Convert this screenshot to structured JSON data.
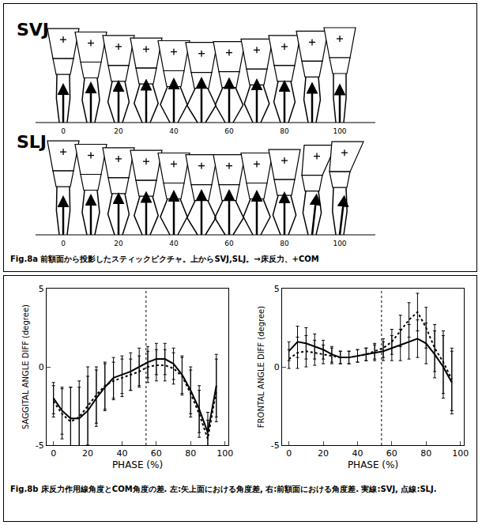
{
  "panel_a": {
    "rows": [
      {
        "label": "SVJ",
        "ticks": [
          0,
          20,
          40,
          60,
          80,
          100
        ]
      },
      {
        "label": "SLJ",
        "ticks": [
          0,
          20,
          40,
          60,
          80,
          100
        ]
      }
    ],
    "caption": "Fig.8a 前額面から投影したスティックピクチャ。上からSVJ,SLJ。→床反力、+COM"
  },
  "chart_data": [
    {
      "type": "line",
      "x_label": "PHASE (%)",
      "y_label": "SAGGITAL ANGLE DIFF (degree)",
      "x": [
        0,
        5,
        10,
        15,
        20,
        25,
        30,
        35,
        40,
        45,
        50,
        55,
        60,
        65,
        70,
        75,
        80,
        85,
        90,
        95
      ],
      "xlim": [
        -4,
        102
      ],
      "xticks": [
        0,
        20,
        40,
        60,
        80,
        100
      ],
      "ylim": [
        -5,
        5
      ],
      "yticks": [
        -5,
        0,
        5
      ],
      "reference_line_x": 54,
      "series": [
        {
          "color": "#000000",
          "line_style": "solid",
          "values": [
            -2.0,
            -2.8,
            -3.3,
            -3.3,
            -2.8,
            -2.0,
            -1.3,
            -0.7,
            -0.5,
            -0.3,
            0.0,
            0.3,
            0.5,
            0.5,
            0.2,
            -0.5,
            -1.5,
            -2.7,
            -4.2,
            -1.2
          ],
          "errors": [
            1.0,
            1.5,
            2.0,
            2.0,
            2.2,
            1.8,
            1.5,
            1.3,
            1.2,
            1.2,
            1.2,
            1.0,
            1.0,
            1.0,
            1.0,
            1.2,
            1.5,
            1.5,
            1.3,
            2.0
          ]
        },
        {
          "color": "#000000",
          "line_style": "dot",
          "values": [
            -2.2,
            -3.0,
            -3.5,
            -3.2,
            -2.5,
            -1.8,
            -1.2,
            -0.9,
            -0.7,
            -0.5,
            -0.3,
            0.0,
            0.1,
            0.1,
            -0.1,
            -0.6,
            -1.7,
            -3.0,
            -4.6,
            -1.5
          ],
          "errors": [
            1.0,
            1.6,
            2.2,
            2.3,
            2.5,
            1.8,
            1.5,
            1.2,
            1.2,
            1.0,
            1.0,
            1.0,
            1.0,
            1.0,
            1.0,
            1.2,
            1.5,
            1.5,
            1.2,
            2.0
          ]
        }
      ]
    },
    {
      "type": "line",
      "x_label": "PHASE (%)",
      "y_label": "FRONTAL ANGLE DIFF (degree)",
      "x": [
        0,
        5,
        10,
        15,
        20,
        25,
        30,
        35,
        40,
        45,
        50,
        55,
        60,
        65,
        70,
        75,
        80,
        85,
        90,
        95
      ],
      "xlim": [
        -4,
        102
      ],
      "xticks": [
        0,
        20,
        40,
        60,
        80,
        100
      ],
      "ylim": [
        -5,
        5
      ],
      "yticks": [
        -5,
        0,
        5
      ],
      "reference_line_x": 54,
      "series": [
        {
          "color": "#000000",
          "line_style": "solid",
          "values": [
            1.0,
            1.6,
            1.5,
            1.3,
            1.1,
            0.8,
            0.6,
            0.6,
            0.7,
            0.8,
            0.9,
            1.0,
            1.2,
            1.4,
            1.6,
            1.8,
            1.5,
            0.8,
            0.0,
            -1.0
          ],
          "errors": [
            0.6,
            1.0,
            1.0,
            0.8,
            0.6,
            0.5,
            0.4,
            0.4,
            0.4,
            0.4,
            0.5,
            0.6,
            0.8,
            1.0,
            1.1,
            1.2,
            1.3,
            1.5,
            2.0,
            2.0
          ]
        },
        {
          "color": "#000000",
          "line_style": "dot",
          "values": [
            0.5,
            0.9,
            1.0,
            0.9,
            0.8,
            0.7,
            0.6,
            0.6,
            0.7,
            0.8,
            1.0,
            1.2,
            1.6,
            2.3,
            3.0,
            3.5,
            2.5,
            1.2,
            0.3,
            -0.8
          ],
          "errors": [
            0.6,
            1.0,
            1.0,
            0.8,
            0.6,
            0.5,
            0.4,
            0.4,
            0.4,
            0.4,
            0.5,
            0.6,
            0.8,
            1.0,
            1.1,
            1.2,
            1.3,
            1.5,
            2.0,
            2.0
          ]
        }
      ]
    }
  ],
  "panel_b_caption": "Fig.8b 床反力作用線角度とCOM角度の差. 左:矢上面における角度差, 右:前額面における角度差. 実線:SVJ, 点線:SLJ."
}
